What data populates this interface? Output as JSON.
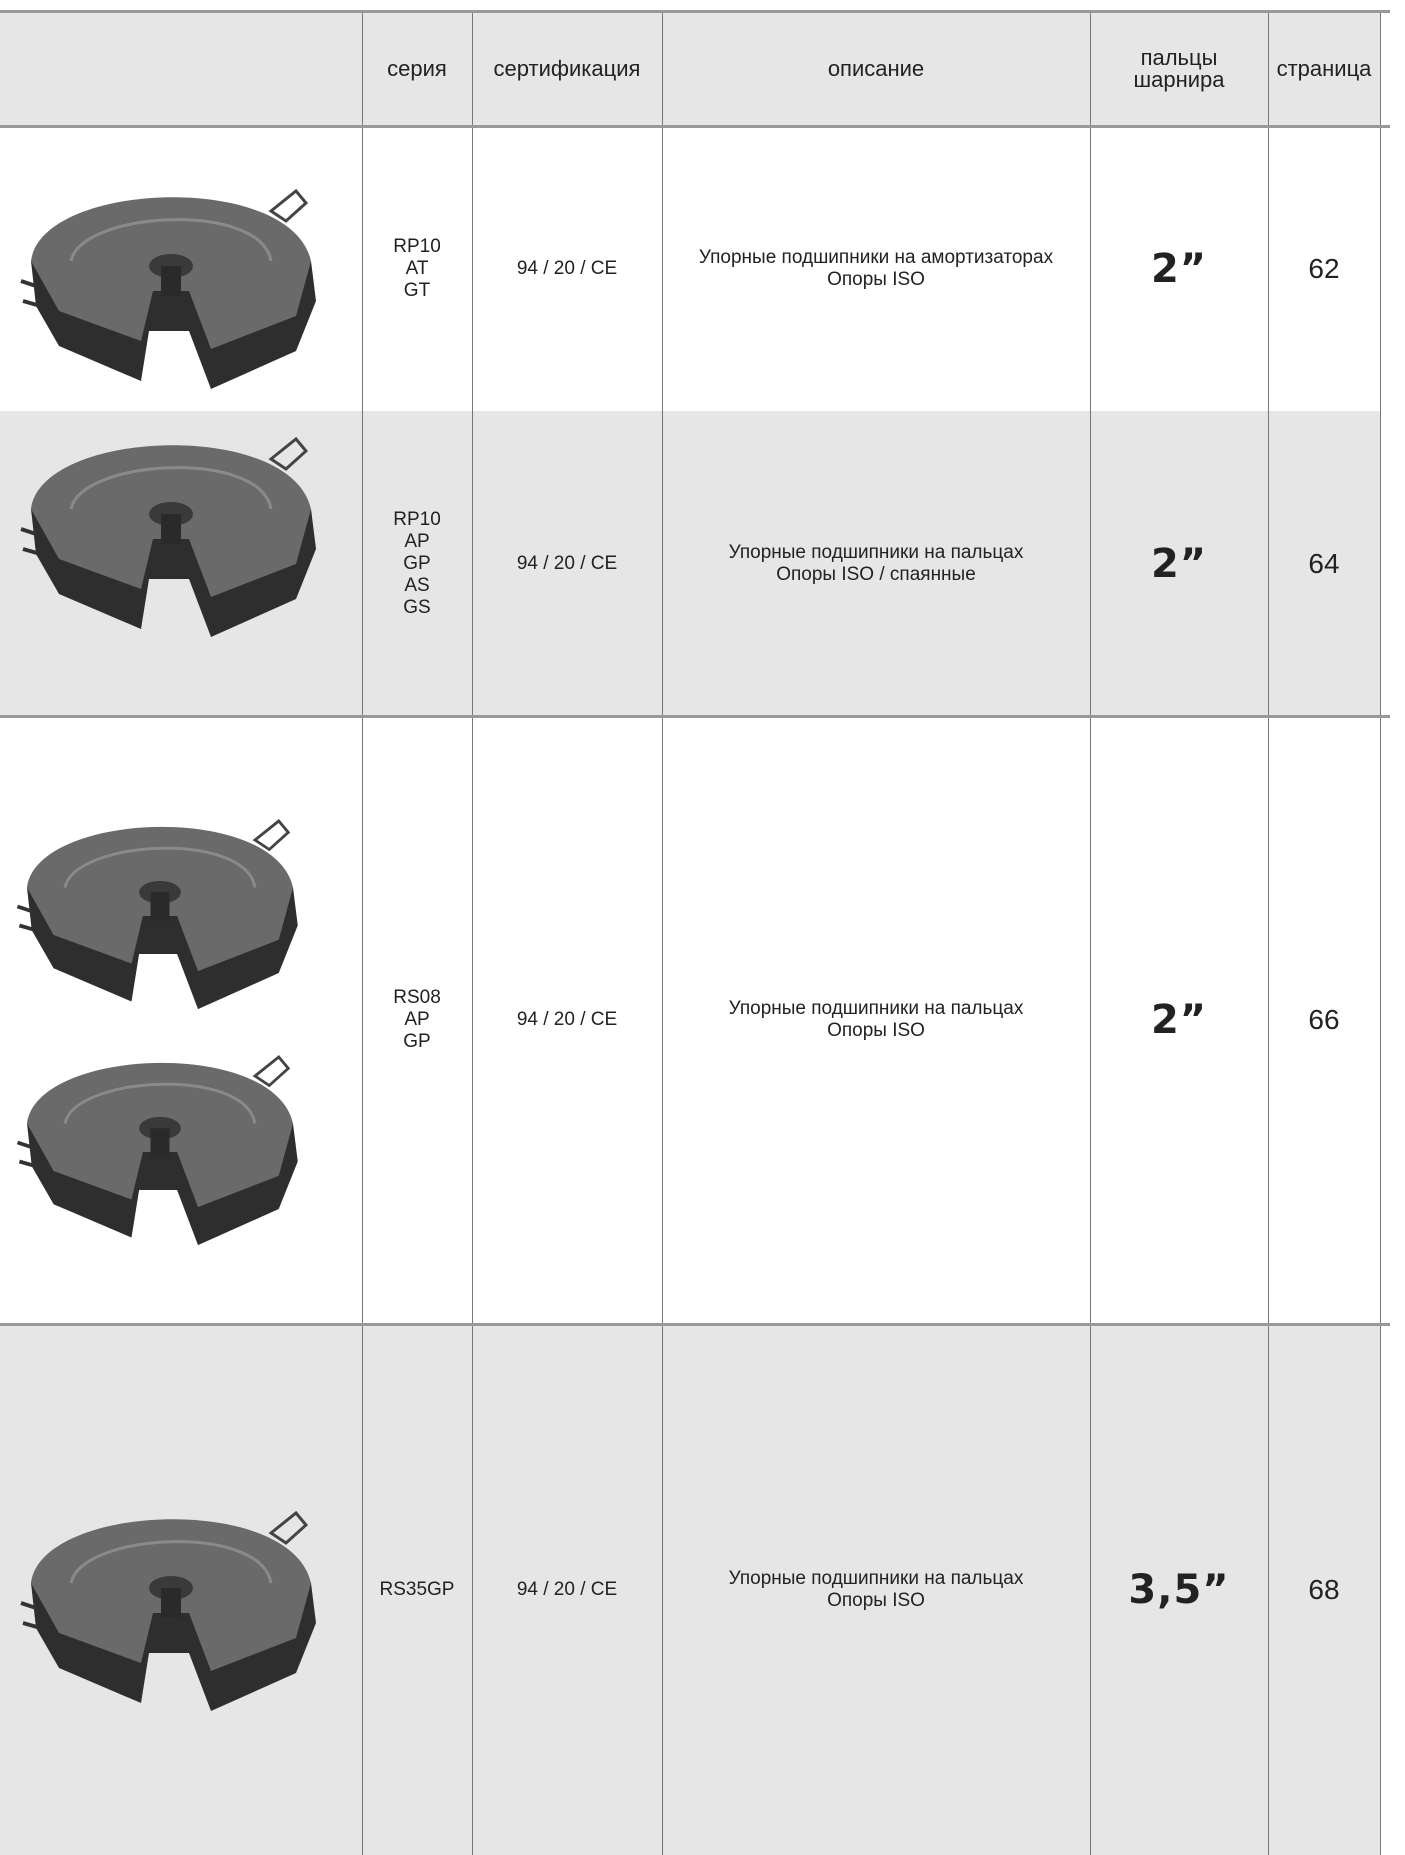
{
  "table": {
    "header": [
      "серия",
      "сертификация",
      "описание",
      "пальцы шарнира",
      "страница"
    ],
    "rows": [
      {
        "series": [
          "RP10",
          "AT",
          "GT"
        ],
        "certification": "94 / 20 / CE",
        "description": [
          "Упорные подшипники на амортизаторах",
          "Опоры ISO"
        ],
        "pin": "2”",
        "page": "62"
      },
      {
        "series": [
          "RP10",
          "AP",
          "GP",
          "AS",
          "GS"
        ],
        "certification": "94 / 20 / CE",
        "description": [
          "Упорные подшипники на пальцах",
          "Опоры ISO / спаянные"
        ],
        "pin": "2”",
        "page": "64"
      },
      {
        "series": [
          "RS08",
          "AP",
          "GP"
        ],
        "certification": "94 / 20 / CE",
        "description": [
          "Упорные подшипники на пальцах",
          "Опоры ISO"
        ],
        "pin": "2”",
        "page": "66"
      },
      {
        "series": [
          "RS35GP"
        ],
        "certification": "94 / 20 / CE",
        "description": [
          "Упорные подшипники на пальцах",
          "Опоры ISO"
        ],
        "pin": "3,5”",
        "page": "68"
      }
    ]
  }
}
